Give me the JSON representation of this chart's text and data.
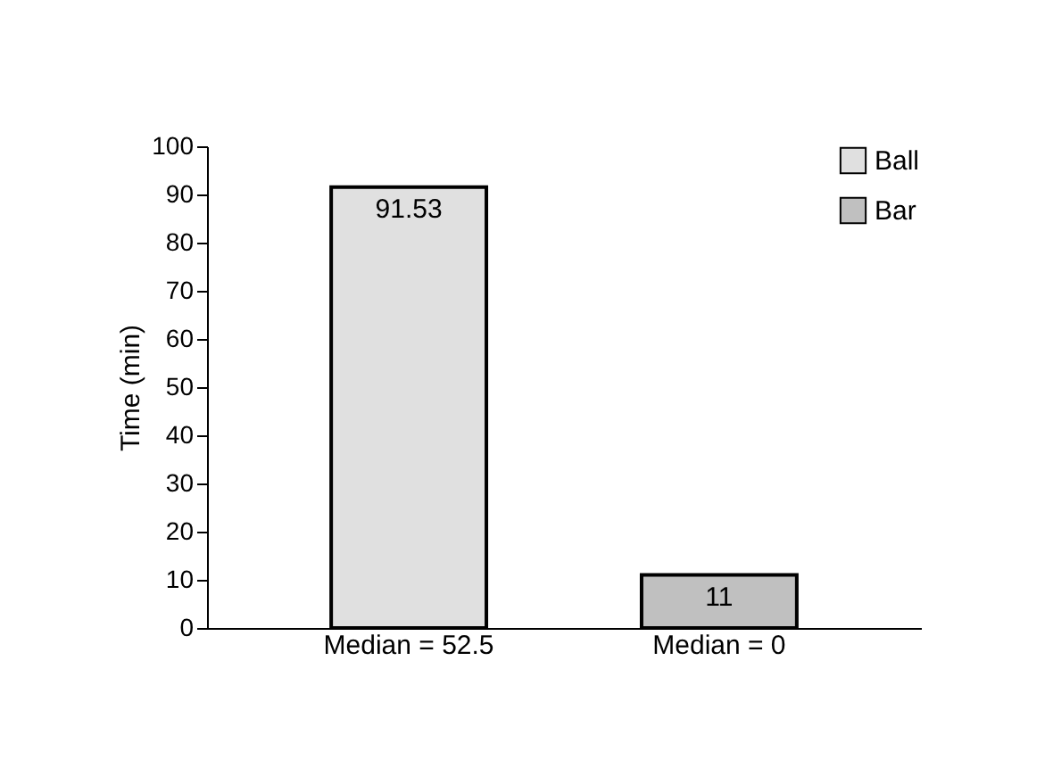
{
  "chart_data": {
    "type": "bar",
    "ylabel": "Time (min)",
    "categories": [
      "Median = 52.5",
      "Median = 0"
    ],
    "series": [
      {
        "name": "Ball",
        "color": "#e0e0e0",
        "values": [
          91.53,
          null
        ]
      },
      {
        "name": "Bar",
        "color": "#c0c0c0",
        "values": [
          null,
          11
        ]
      }
    ],
    "ylim": [
      0,
      100
    ],
    "yticks": [
      0,
      10,
      20,
      30,
      40,
      50,
      60,
      70,
      80,
      90,
      100
    ],
    "data_labels": true,
    "legend": "top right",
    "grid": false
  }
}
